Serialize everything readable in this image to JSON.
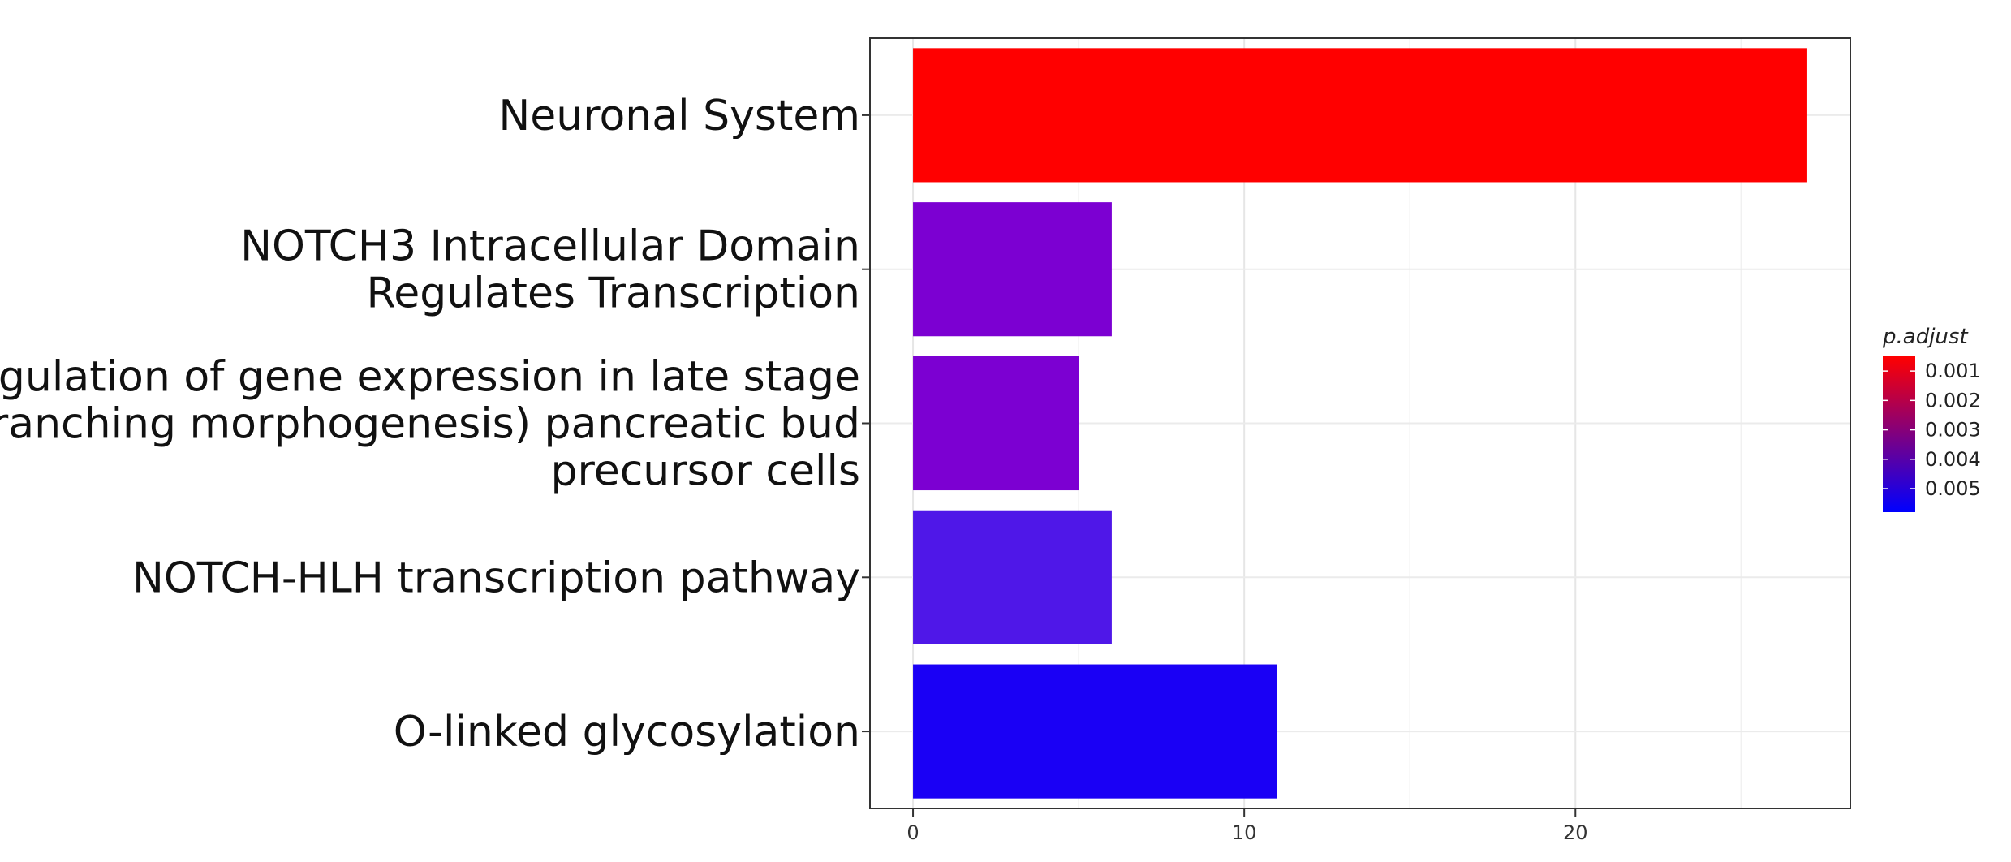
{
  "chart_data": {
    "type": "bar",
    "orientation": "horizontal",
    "categories": [
      [
        "Neuronal System"
      ],
      [
        "NOTCH3 Intracellular Domain",
        "Regulates Transcription"
      ],
      [
        "Regulation of gene expression in late stage",
        "(branching morphogenesis) pancreatic bud",
        "precursor cells"
      ],
      [
        "NOTCH-HLH transcription pathway"
      ],
      [
        "O-linked glycosylation"
      ]
    ],
    "values": [
      27,
      6,
      5,
      6,
      11
    ],
    "p_adjust": [
      0.0005,
      0.0033,
      0.0033,
      0.0045,
      0.0058
    ],
    "bar_colors": [
      "#ff0000",
      "#7c00d2",
      "#7c00d2",
      "#4f17e8",
      "#1a00f5"
    ],
    "xlim": [
      -1.3,
      28.3
    ],
    "xticks": [
      0,
      10,
      20
    ],
    "grid": true,
    "legend": {
      "title": "p.adjust",
      "position": "right",
      "labels": [
        "0.001",
        "0.002",
        "0.003",
        "0.004",
        "0.005"
      ],
      "label_values": [
        0.001,
        0.002,
        0.003,
        0.004,
        0.005
      ],
      "range": [
        0.0005,
        0.0058
      ],
      "colors": [
        "#ff0000",
        "#0000ff"
      ]
    }
  }
}
